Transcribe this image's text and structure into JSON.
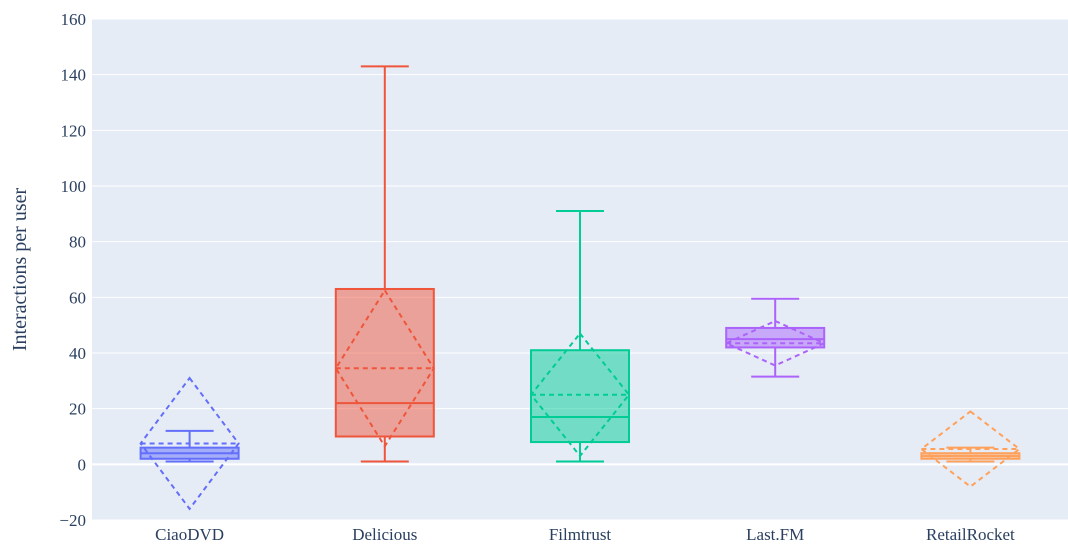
{
  "chart_data": {
    "type": "box",
    "title": "",
    "xlabel": "",
    "ylabel": "Interactions per user",
    "ylim": [
      -20,
      160
    ],
    "yticks": [
      -20,
      0,
      20,
      40,
      60,
      80,
      100,
      120,
      140,
      160
    ],
    "ytick_labels": [
      "−20",
      "0",
      "20",
      "40",
      "60",
      "80",
      "100",
      "120",
      "140",
      "160"
    ],
    "grid": true,
    "legend": "none",
    "plot_bgcolor": "#e5ecf6",
    "categories": [
      "CiaoDVD",
      "Delicious",
      "Filmtrust",
      "Last.FM",
      "RetailRocket"
    ],
    "series": [
      {
        "category": "CiaoDVD",
        "color": "#636efa",
        "lowerfence": 1,
        "q1": 2,
        "median": 4,
        "q3": 6,
        "upperfence": 12,
        "mean": 7.5,
        "sd": 23.5
      },
      {
        "category": "Delicious",
        "color": "#ef553b",
        "lowerfence": 1,
        "q1": 10,
        "median": 22,
        "q3": 63,
        "upperfence": 143,
        "mean": 34.5,
        "sd": 28
      },
      {
        "category": "Filmtrust",
        "color": "#00cc96",
        "lowerfence": 1,
        "q1": 8,
        "median": 17,
        "q3": 41,
        "upperfence": 91,
        "mean": 25,
        "sd": 22
      },
      {
        "category": "Last.FM",
        "color": "#ab63fa",
        "lowerfence": 31.5,
        "q1": 42,
        "median": 45,
        "q3": 49,
        "upperfence": 59.5,
        "mean": 43.5,
        "sd": 8
      },
      {
        "category": "RetailRocket",
        "color": "#ffa15a",
        "lowerfence": 1,
        "q1": 2,
        "median": 3,
        "q3": 4,
        "upperfence": 6,
        "mean": 5.5,
        "sd": 13.5
      }
    ]
  }
}
